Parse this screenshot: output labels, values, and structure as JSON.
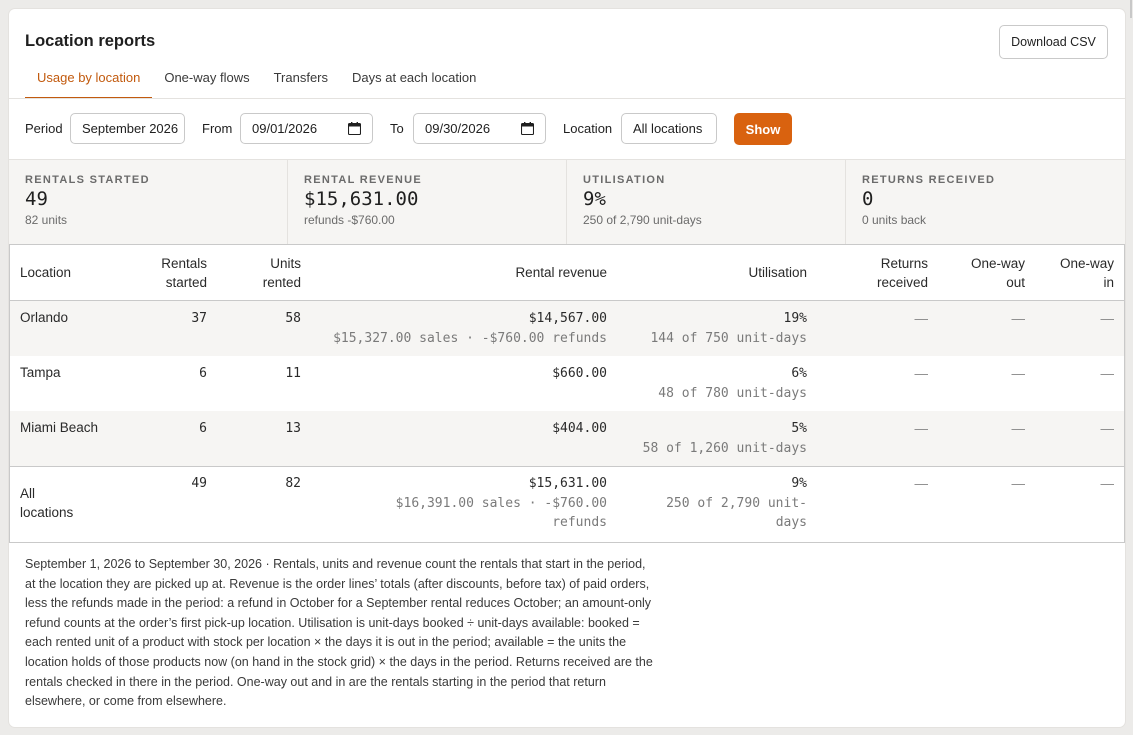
{
  "header": {
    "title": "Location reports",
    "download_label": "Download CSV"
  },
  "tabs": [
    {
      "label": "Usage by location",
      "active": true
    },
    {
      "label": "One-way flows",
      "active": false
    },
    {
      "label": "Transfers",
      "active": false
    },
    {
      "label": "Days at each location",
      "active": false
    }
  ],
  "filters": {
    "period_label": "Period",
    "period_value": "September 2026",
    "from_label": "From",
    "from_value": "09/01/2026",
    "to_label": "To",
    "to_value": "09/30/2026",
    "location_label": "Location",
    "location_value": "All locations",
    "show_label": "Show"
  },
  "stats": [
    {
      "label": "RENTALS STARTED",
      "value": "49",
      "sub": "82 units"
    },
    {
      "label": "RENTAL REVENUE",
      "value": "$15,631.00",
      "sub": "refunds -$760.00"
    },
    {
      "label": "UTILISATION",
      "value": "9%",
      "sub": "250 of 2,790 unit-days"
    },
    {
      "label": "RETURNS RECEIVED",
      "value": "0",
      "sub": "0 units back"
    }
  ],
  "table": {
    "headers": {
      "location": "Location",
      "rentals_1": "Rentals",
      "rentals_2": "started",
      "units_1": "Units",
      "units_2": "rented",
      "revenue": "Rental revenue",
      "utilisation": "Utilisation",
      "returns_1": "Returns",
      "returns_2": "received",
      "out_1": "One-way",
      "out_2": "out",
      "in_1": "One-way",
      "in_2": "in"
    },
    "rows": [
      {
        "location": "Orlando",
        "rentals": "37",
        "units": "58",
        "revenue": "$14,567.00",
        "revenue_detail": "$15,327.00 sales · -$760.00 refunds",
        "util": "19%",
        "util_detail": "144 of 750 unit-days",
        "returns": "—",
        "out": "—",
        "in": "—"
      },
      {
        "location": "Tampa",
        "rentals": "6",
        "units": "11",
        "revenue": "$660.00",
        "revenue_detail": "",
        "util": "6%",
        "util_detail": "48 of 780 unit-days",
        "returns": "—",
        "out": "—",
        "in": "—"
      },
      {
        "location": "Miami Beach",
        "rentals": "6",
        "units": "13",
        "revenue": "$404.00",
        "revenue_detail": "",
        "util": "5%",
        "util_detail": "58 of 1,260 unit-days",
        "returns": "—",
        "out": "—",
        "in": "—"
      }
    ],
    "total": {
      "location_1": "All",
      "location_2": "locations",
      "rentals": "49",
      "units": "82",
      "revenue": "$15,631.00",
      "revenue_detail_1": "$16,391.00 sales · -$760.00",
      "revenue_detail_2": "refunds",
      "util": "9%",
      "util_detail_1": "250 of 2,790 unit-",
      "util_detail_2": "days",
      "returns": "—",
      "out": "—",
      "in": "—"
    }
  },
  "footnote": "September 1, 2026 to September 30, 2026 · Rentals, units and revenue count the rentals that start in the period, at the location they are picked up at. Revenue is the order lines’ totals (after discounts, before tax) of paid orders, less the refunds made in the period: a refund in October for a September rental reduces October; an amount-only refund counts at the order’s first pick-up location. Utilisation is unit-days booked ÷ unit-days available: booked = each rented unit of a product with stock per location × the days it is out in the period; available = the units the location holds of those products now (on hand in the stock grid) × the days in the period. Returns received are the rentals checked in there in the period. One-way out and in are the rentals starting in the period that return elsewhere, or come from elsewhere."
}
